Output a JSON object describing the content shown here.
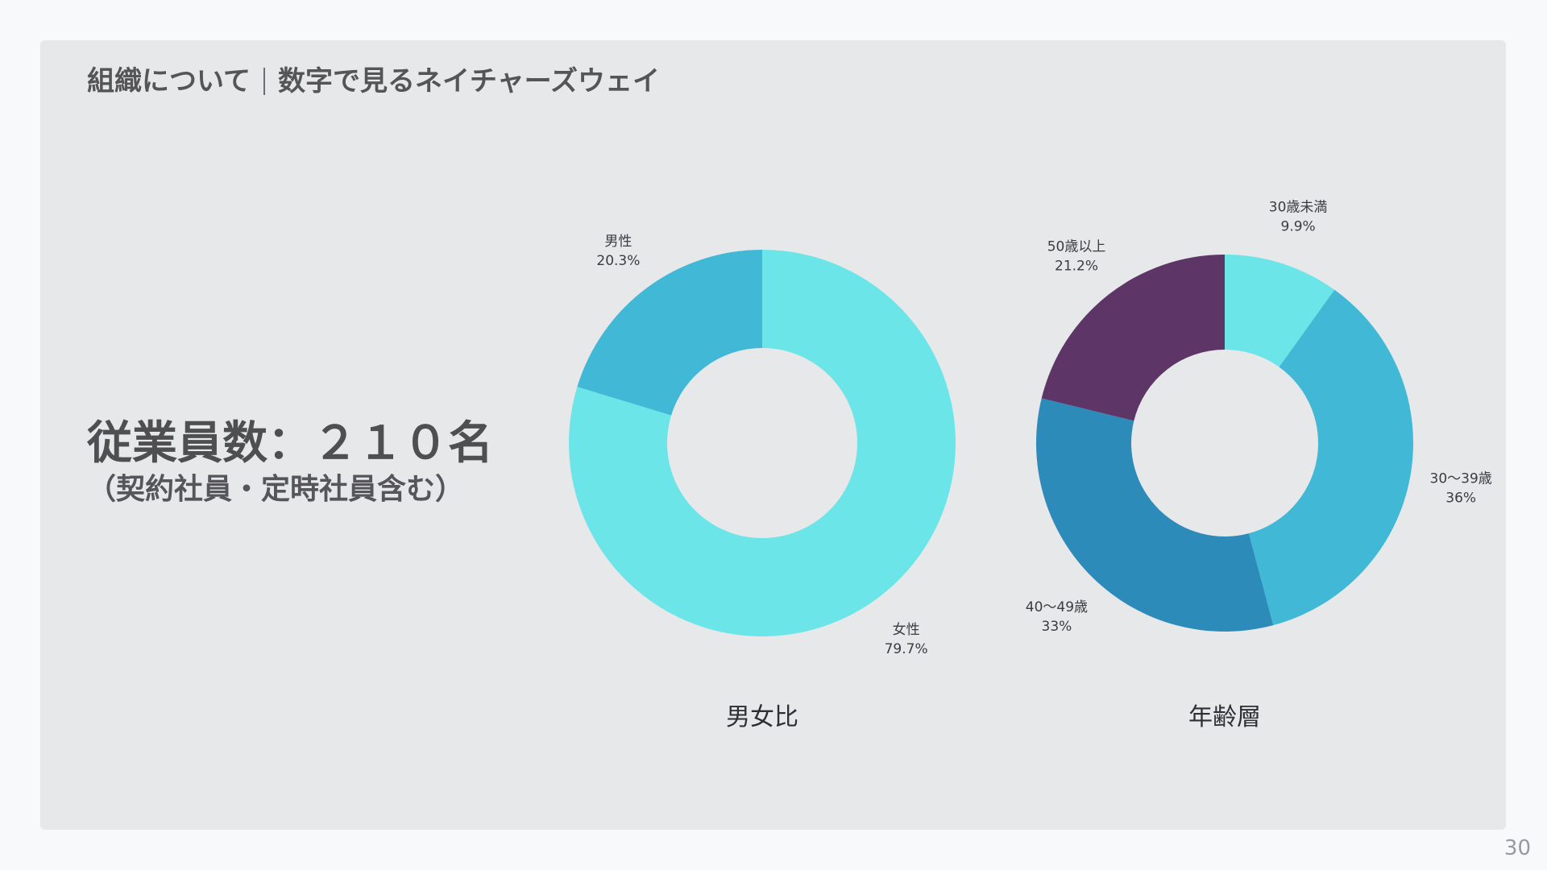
{
  "header": {
    "section": "組織について",
    "title": "数字で見るネイチャーズウェイ"
  },
  "headline": {
    "main": "従業員数：２１０名",
    "sub": "（契約社員・定時社員含む）"
  },
  "page_number": "30",
  "chart_data": [
    {
      "type": "pie",
      "variant": "donut",
      "caption": "男女比",
      "slices": [
        {
          "label": "女性",
          "value": 79.7,
          "value_label": "79.7%",
          "color": "#6ce5e8"
        },
        {
          "label": "男性",
          "value": 20.3,
          "value_label": "20.3%",
          "color": "#41b8d5"
        }
      ]
    },
    {
      "type": "pie",
      "variant": "donut",
      "caption": "年齢層",
      "slices": [
        {
          "label": "30歳未満",
          "value": 9.9,
          "value_label": "9.9%",
          "color": "#6ce5e8"
        },
        {
          "label": "30〜39歳",
          "value": 36,
          "value_label": "36%",
          "color": "#41b8d5"
        },
        {
          "label": "40〜49歳",
          "value": 33,
          "value_label": "33%",
          "color": "#2d8bba"
        },
        {
          "label": "50歳以上",
          "value": 21.2,
          "value_label": "21.2%",
          "color": "#5e3567"
        }
      ]
    }
  ]
}
